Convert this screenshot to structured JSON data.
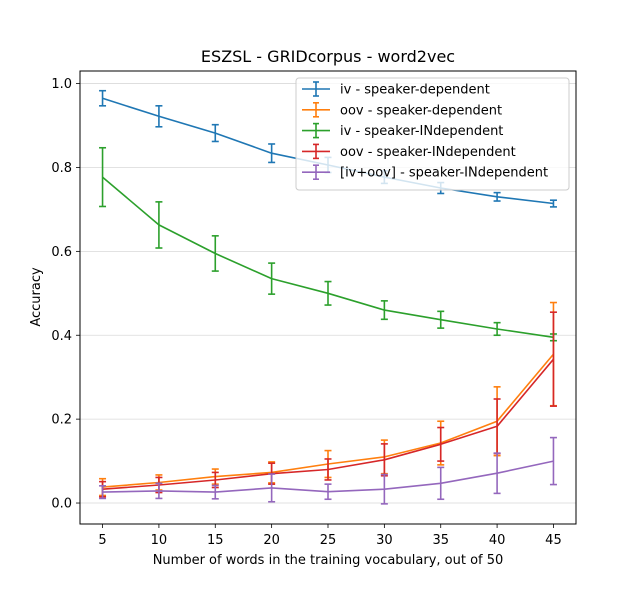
{
  "chart_data": {
    "type": "line",
    "title": "ESZSL - GRIDcorpus - word2vec",
    "xlabel": "Number of words in the training vocabulary, out of 50",
    "ylabel": "Accuracy",
    "x": [
      5,
      10,
      15,
      20,
      25,
      30,
      35,
      40,
      45
    ],
    "x_ticks": [
      "5",
      "10",
      "15",
      "20",
      "25",
      "30",
      "35",
      "40",
      "45"
    ],
    "y_ticks": [
      "0.0",
      "0.2",
      "0.4",
      "0.6",
      "0.8",
      "1.0"
    ],
    "xlim": [
      3,
      47
    ],
    "ylim": [
      -0.05,
      1.03
    ],
    "grid": "horizontal",
    "legend_position": "top-right",
    "series": [
      {
        "name": "iv - speaker-dependent",
        "color": "#1f77b4",
        "values": [
          0.965,
          0.922,
          0.882,
          0.834,
          0.806,
          0.777,
          0.751,
          0.73,
          0.714
        ],
        "errors": [
          0.018,
          0.025,
          0.02,
          0.022,
          0.018,
          0.015,
          0.013,
          0.01,
          0.008
        ]
      },
      {
        "name": "oov - speaker-dependent",
        "color": "#ff7f0e",
        "values": [
          0.038,
          0.049,
          0.063,
          0.073,
          0.093,
          0.11,
          0.143,
          0.195,
          0.355
        ],
        "errors": [
          0.02,
          0.018,
          0.018,
          0.025,
          0.032,
          0.04,
          0.052,
          0.082,
          0.123
        ]
      },
      {
        "name": "iv - speaker-INdependent",
        "color": "#2ca02c",
        "values": [
          0.777,
          0.663,
          0.595,
          0.535,
          0.5,
          0.46,
          0.437,
          0.415,
          0.395
        ],
        "errors": [
          0.07,
          0.055,
          0.042,
          0.037,
          0.028,
          0.022,
          0.02,
          0.015,
          0.008
        ]
      },
      {
        "name": "oov - speaker-INdependent",
        "color": "#d62728",
        "values": [
          0.033,
          0.043,
          0.055,
          0.07,
          0.08,
          0.103,
          0.14,
          0.183,
          0.343
        ],
        "errors": [
          0.018,
          0.018,
          0.018,
          0.025,
          0.025,
          0.038,
          0.04,
          0.065,
          0.112
        ]
      },
      {
        "name": "[iv+oov] - speaker-INdependent",
        "color": "#9467bd",
        "values": [
          0.026,
          0.029,
          0.026,
          0.036,
          0.027,
          0.033,
          0.047,
          0.071,
          0.1
        ],
        "errors": [
          0.015,
          0.018,
          0.016,
          0.033,
          0.018,
          0.035,
          0.038,
          0.048,
          0.056
        ]
      }
    ]
  }
}
